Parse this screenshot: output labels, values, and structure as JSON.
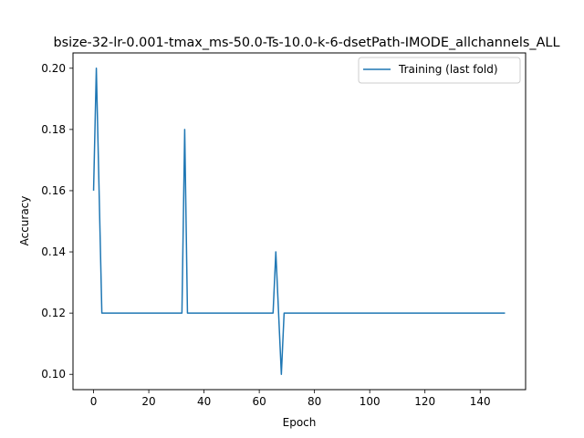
{
  "chart_data": {
    "type": "line",
    "title": "bsize-32-lr-0.001-tmax_ms-50.0-Ts-10.0-k-6-dsetPath-IMODE_allchannels_ALL",
    "xlabel": "Epoch",
    "ylabel": "Accuracy",
    "xlim": [
      -7.45,
      156.45
    ],
    "ylim": [
      0.095,
      0.205
    ],
    "xticks": [
      0,
      20,
      40,
      60,
      80,
      100,
      120,
      140
    ],
    "yticks": [
      0.1,
      0.12,
      0.14,
      0.16,
      0.18,
      0.2
    ],
    "xtick_labels": [
      "0",
      "20",
      "40",
      "60",
      "80",
      "100",
      "120",
      "140"
    ],
    "ytick_labels": [
      "0.10",
      "0.12",
      "0.14",
      "0.16",
      "0.18",
      "0.20"
    ],
    "grid": false,
    "legend": "top-right",
    "series": [
      {
        "name": "Training (last fold)",
        "color": "#1f77b4",
        "x": [
          0,
          1,
          3,
          32,
          33,
          34,
          65,
          66,
          68,
          69,
          149
        ],
        "y": [
          0.16,
          0.2,
          0.12,
          0.12,
          0.18,
          0.12,
          0.12,
          0.14,
          0.1,
          0.12,
          0.12
        ]
      }
    ]
  }
}
